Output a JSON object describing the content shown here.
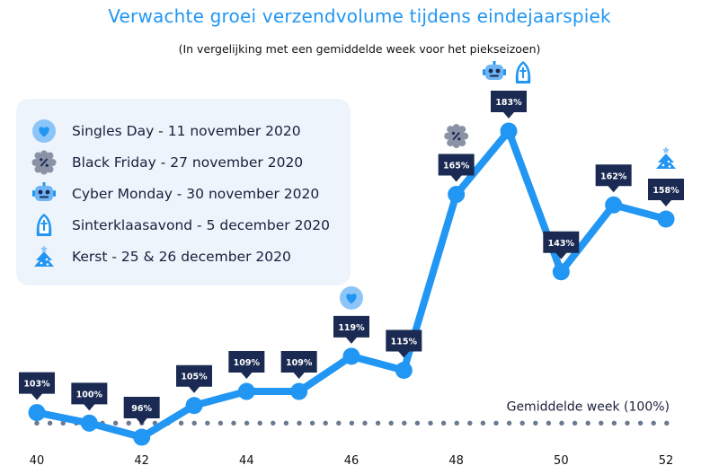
{
  "chart_data": {
    "type": "line",
    "title": "Verwachte groei verzendvolume tijdens eindejaarspiek",
    "subtitle": "(In vergelijking met een gemiddelde week voor het piekseizoen)",
    "x": [
      40,
      41,
      42,
      43,
      44,
      45,
      46,
      47,
      48,
      49,
      50,
      51,
      52
    ],
    "x_tick_labels": [
      "40",
      "42",
      "44",
      "46",
      "48",
      "50",
      "52"
    ],
    "values": [
      103,
      100,
      96,
      105,
      109,
      109,
      119,
      115,
      165,
      183,
      143,
      162,
      158
    ],
    "data_labels": [
      "103%",
      "100%",
      "96%",
      "105%",
      "109%",
      "109%",
      "119%",
      "115%",
      "165%",
      "183%",
      "143%",
      "162%",
      "158%"
    ],
    "xlim": [
      40,
      52
    ],
    "ylim": [
      96,
      183
    ],
    "reference_line": {
      "value": 100,
      "label": "Gemiddelde week (100%)",
      "style": "dotted"
    },
    "grid": false,
    "legend_position": "top-left",
    "event_markers": [
      {
        "week": 46,
        "event": "singles_day"
      },
      {
        "week": 48,
        "event": "black_friday"
      },
      {
        "week": 49,
        "event": "cyber_monday"
      },
      {
        "week": 49,
        "event": "sinterklaasavond"
      },
      {
        "week": 52,
        "event": "kerst"
      }
    ]
  },
  "legend": {
    "items": [
      {
        "id": "singles_day",
        "label": "Singles Day - 11 november 2020",
        "icon": "heart-icon"
      },
      {
        "id": "black_friday",
        "label": "Black Friday - 27 november 2020",
        "icon": "percent-badge-icon"
      },
      {
        "id": "cyber_monday",
        "label": "Cyber Monday - 30 november 2020",
        "icon": "robot-icon"
      },
      {
        "id": "sinterklaasavond",
        "label": "Sinterklaasavond - 5 december 2020",
        "icon": "mitre-icon"
      },
      {
        "id": "kerst",
        "label": "Kerst - 25 & 26 december 2020",
        "icon": "christmas-tree-icon"
      }
    ]
  },
  "colors": {
    "title": "#2196f3",
    "line": "#2196f3",
    "label_box": "#1b2a52",
    "reference_dots": "#6b7a90",
    "legend_background": "#eef4fc",
    "icon_blue": "#2196f3",
    "icon_gray": "#8a93a6"
  }
}
